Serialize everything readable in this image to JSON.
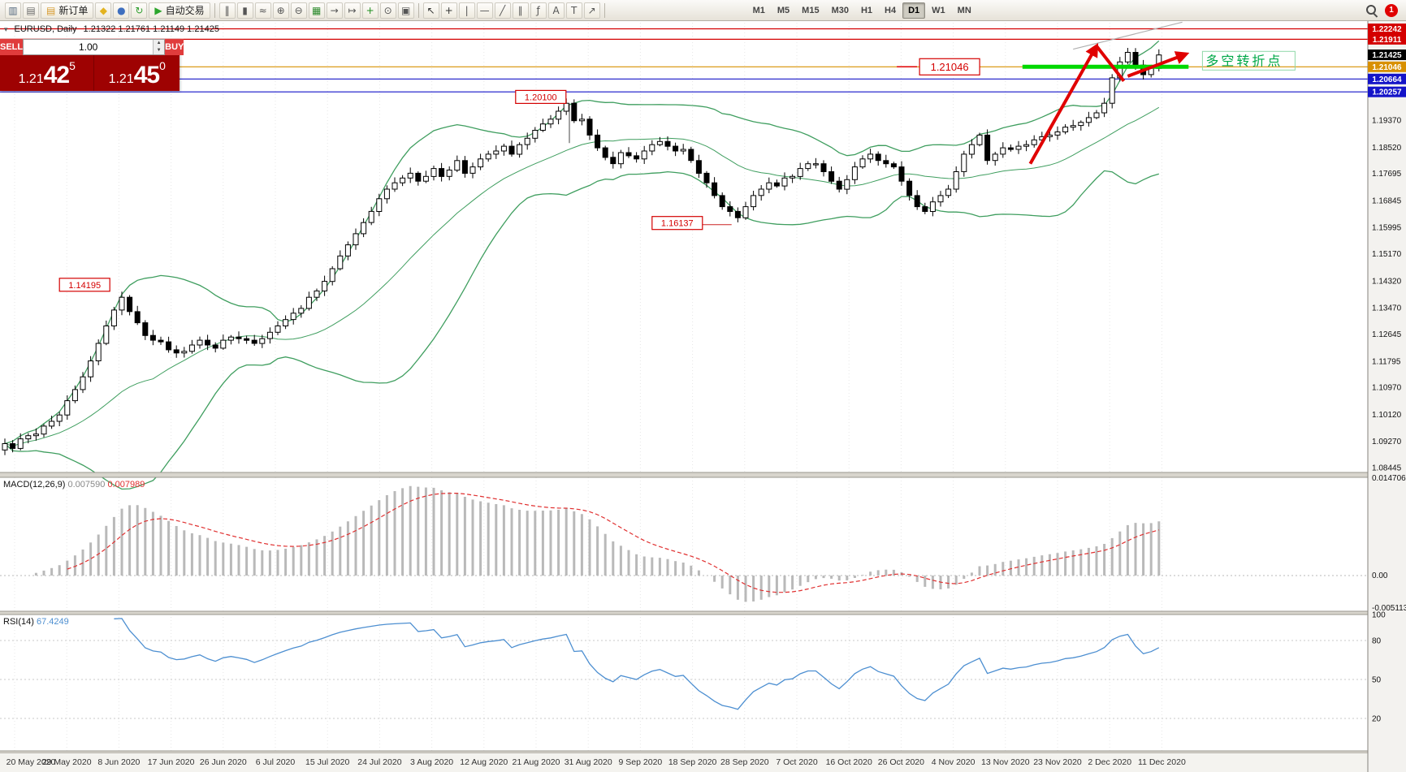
{
  "toolbar": {
    "new_order_label": "新订单",
    "autotrading_label": "自动交易",
    "notification_count": "1",
    "timeframes": [
      "M1",
      "M5",
      "M15",
      "M30",
      "H1",
      "H4",
      "D1",
      "W1",
      "MN"
    ],
    "active_timeframe": "D1",
    "items": [
      {
        "type": "icon",
        "name": "chart-window-icon",
        "glyph": "▥",
        "color": "#54687e"
      },
      {
        "type": "icon",
        "name": "profiles-icon",
        "glyph": "▤",
        "color": "#6b6b6b"
      },
      {
        "type": "button",
        "name": "new-order-button",
        "glyph": "▤",
        "color": "#d79b2f",
        "label_key": "new_order_label"
      },
      {
        "type": "icon",
        "name": "deposit-icon",
        "glyph": "◆",
        "color": "#e3b320"
      },
      {
        "type": "icon",
        "name": "user-icon",
        "glyph": "●",
        "color": "#3f6fbf"
      },
      {
        "type": "icon",
        "name": "refresh-icon",
        "glyph": "↻",
        "color": "#2e9e2e"
      },
      {
        "type": "button",
        "name": "autotrading-button",
        "glyph": "▶",
        "color": "#2ba52b",
        "label_key": "autotrading_label"
      },
      {
        "type": "sep"
      },
      {
        "type": "icon",
        "name": "bar-chart-icon",
        "glyph": "‖",
        "color": "#555"
      },
      {
        "type": "icon",
        "name": "candlestick-chart-icon",
        "glyph": "▮",
        "color": "#555"
      },
      {
        "type": "icon",
        "name": "line-chart-icon",
        "glyph": "≈",
        "color": "#555"
      },
      {
        "type": "icon",
        "name": "zoom-in-icon",
        "glyph": "⊕",
        "color": "#555"
      },
      {
        "type": "icon",
        "name": "zoom-out-icon",
        "glyph": "⊖",
        "color": "#555"
      },
      {
        "type": "icon",
        "name": "tile-windows-icon",
        "glyph": "▦",
        "color": "#2e8b2e"
      },
      {
        "type": "icon",
        "name": "auto-scroll-icon",
        "glyph": "→",
        "color": "#555"
      },
      {
        "type": "icon",
        "name": "chart-shift-icon",
        "glyph": "↦",
        "color": "#555"
      },
      {
        "type": "icon",
        "name": "add-indicator-icon",
        "glyph": "+",
        "color": "#1f8f1f"
      },
      {
        "type": "icon",
        "name": "periods-icon",
        "glyph": "⊙",
        "color": "#555"
      },
      {
        "type": "icon",
        "name": "template-icon",
        "glyph": "▣",
        "color": "#555"
      },
      {
        "type": "sep"
      },
      {
        "type": "icon",
        "name": "cursor-icon",
        "glyph": "↖",
        "color": "#333"
      },
      {
        "type": "icon",
        "name": "crosshair-icon",
        "glyph": "+",
        "color": "#333"
      },
      {
        "type": "icon",
        "name": "vertical-line-icon",
        "glyph": "|",
        "color": "#555"
      },
      {
        "type": "icon",
        "name": "horizontal-line-icon",
        "glyph": "—",
        "color": "#555"
      },
      {
        "type": "icon",
        "name": "trendline-icon",
        "glyph": "╱",
        "color": "#555"
      },
      {
        "type": "icon",
        "name": "channel-icon",
        "glyph": "∥",
        "color": "#555"
      },
      {
        "type": "icon",
        "name": "fibonacci-icon",
        "glyph": "ƒ",
        "color": "#555"
      },
      {
        "type": "icon",
        "name": "text-icon",
        "glyph": "A",
        "color": "#555"
      },
      {
        "type": "icon",
        "name": "text-label-icon",
        "glyph": "T",
        "color": "#555"
      },
      {
        "type": "icon",
        "name": "arrows-icon",
        "glyph": "↗",
        "color": "#555"
      },
      {
        "type": "sep"
      }
    ]
  },
  "chart": {
    "title": {
      "toggle_glyph": "▾",
      "symbol_period": "EURUSD, Daily",
      "ohlc": "1.21322 1.21761 1.21149 1.21425"
    },
    "trade_panel": {
      "sell_label": "SELL",
      "buy_label": "BUY",
      "volume": "1.00",
      "spin_up": "▲",
      "spin_down": "▼",
      "sell_price": {
        "base": "1.21",
        "big": "42",
        "sup": "5"
      },
      "buy_price": {
        "base": "1.21",
        "big": "45",
        "sup": "0"
      }
    }
  },
  "indicators": {
    "macd": {
      "label": "MACD(12,26,9)",
      "value_main": "0.007590",
      "value_signal": "0.007989"
    },
    "rsi": {
      "label": "RSI(14)",
      "value": "67.4249"
    }
  },
  "chart_data": {
    "type": "candlestick",
    "symbol": "EURUSD",
    "timeframe": "Daily",
    "x_labels": [
      "20 May 2020",
      "29 May 2020",
      "8 Jun 2020",
      "17 Jun 2020",
      "26 Jun 2020",
      "6 Jul 2020",
      "15 Jul 2020",
      "24 Jul 2020",
      "3 Aug 2020",
      "12 Aug 2020",
      "21 Aug 2020",
      "31 Aug 2020",
      "9 Sep 2020",
      "18 Sep 2020",
      "28 Sep 2020",
      "7 Oct 2020",
      "16 Oct 2020",
      "26 Oct 2020",
      "4 Nov 2020",
      "13 Nov 2020",
      "23 Nov 2020",
      "2 Dec 2020",
      "11 Dec 2020"
    ],
    "closes": [
      1.092,
      1.0905,
      1.0935,
      1.0945,
      1.095,
      1.0975,
      1.099,
      1.101,
      1.1055,
      1.109,
      1.113,
      1.118,
      1.1235,
      1.129,
      1.134,
      1.138,
      1.1335,
      1.13,
      1.126,
      1.1245,
      1.124,
      1.1215,
      1.1205,
      1.121,
      1.123,
      1.1245,
      1.123,
      1.122,
      1.1245,
      1.1255,
      1.125,
      1.1245,
      1.1235,
      1.125,
      1.127,
      1.129,
      1.131,
      1.133,
      1.1345,
      1.138,
      1.14,
      1.143,
      1.147,
      1.151,
      1.1545,
      1.158,
      1.1615,
      1.165,
      1.169,
      1.172,
      1.174,
      1.1755,
      1.177,
      1.1745,
      1.176,
      1.1785,
      1.176,
      1.178,
      1.181,
      1.177,
      1.179,
      1.1815,
      1.183,
      1.184,
      1.1855,
      1.183,
      1.186,
      1.188,
      1.1905,
      1.1925,
      1.194,
      1.1965,
      1.199,
      1.1935,
      1.194,
      1.189,
      1.185,
      1.182,
      1.18,
      1.1835,
      1.1825,
      1.1815,
      1.184,
      1.186,
      1.187,
      1.1855,
      1.184,
      1.1845,
      1.181,
      1.177,
      1.174,
      1.17,
      1.1665,
      1.165,
      1.163,
      1.1665,
      1.17,
      1.172,
      1.174,
      1.173,
      1.1755,
      1.176,
      1.1785,
      1.18,
      1.18,
      1.1775,
      1.1745,
      1.172,
      1.175,
      1.179,
      1.1815,
      1.183,
      1.181,
      1.18,
      1.179,
      1.1745,
      1.17,
      1.1665,
      1.165,
      1.168,
      1.17,
      1.172,
      1.1775,
      1.183,
      1.186,
      1.189,
      1.181,
      1.183,
      1.185,
      1.1845,
      1.1855,
      1.186,
      1.1875,
      1.1885,
      1.189,
      1.19,
      1.1915,
      1.192,
      1.193,
      1.1945,
      1.196,
      1.199,
      1.207,
      1.212,
      1.215,
      1.211,
      1.208,
      1.21,
      1.2142
    ],
    "y_ticks": [
      1.1937,
      1.1852,
      1.17695,
      1.16845,
      1.15995,
      1.1517,
      1.1432,
      1.1347,
      1.12645,
      1.11795,
      1.1097,
      1.1012,
      1.0927,
      1.08445
    ],
    "price_levels": [
      {
        "price": 1.22242,
        "tag_bg": "#d40000",
        "line": true,
        "line_color": "#d40000"
      },
      {
        "price": 1.21911,
        "tag_bg": "#d40000",
        "line": true,
        "line_color": "#d40000"
      },
      {
        "price": 1.21425,
        "tag_bg": "#000000",
        "line": false,
        "line_color": null,
        "role": "last-price"
      },
      {
        "price": 1.21046,
        "tag_bg": "#d89000",
        "line": true,
        "line_color": "#d89000"
      },
      {
        "price": 1.20664,
        "tag_bg": "#1414c8",
        "line": true,
        "line_color": "#1414c8"
      },
      {
        "price": 1.20257,
        "tag_bg": "#1414c8",
        "line": true,
        "line_color": "#1414c8"
      }
    ],
    "overlays": {
      "bollinger_period": 20,
      "bollinger_deviation": 2,
      "bollinger_color": "#3f9e5f"
    },
    "macd": {
      "params": [
        12,
        26,
        9
      ],
      "scale": [
        "0.014706",
        "0.00",
        "-0.005113"
      ],
      "scale_values": [
        0.014706,
        0,
        -0.005113
      ]
    },
    "rsi": {
      "period": 14,
      "scale": [
        "100",
        "80",
        "50",
        "20"
      ],
      "scale_values": [
        100,
        80,
        50,
        20
      ],
      "level_lines": [
        80,
        50,
        20
      ]
    },
    "annotations": {
      "labels": [
        {
          "text": "1.14195",
          "value": 1.14195,
          "ci": 7,
          "big": false
        },
        {
          "text": "1.20100",
          "value": 1.201,
          "ci": 65.5,
          "big": false,
          "vline": {
            "ci": 72.4,
            "to": 1.1865
          }
        },
        {
          "text": "1.16137",
          "value": 1.16137,
          "ci": 83,
          "big": false,
          "hline": {
            "to_ci": 93.2
          }
        },
        {
          "text": "1.21046",
          "value": 1.21046,
          "ci": 117.3,
          "big": true,
          "dash_left": true
        }
      ],
      "note": {
        "text": "多空转折点",
        "ci": 154,
        "value": 1.21226,
        "color": "#00a848"
      },
      "drawings": {
        "arrows": [
          {
            "from": [
              131.5,
              1.18
            ],
            "to": [
              140,
              1.217
            ],
            "head": true
          },
          {
            "from": [
              140,
              1.217
            ],
            "to": [
              143.5,
              1.206
            ],
            "head": false
          },
          {
            "from": [
              144,
              1.2075
            ],
            "to": [
              151.5,
              1.2145
            ],
            "head": true
          }
        ],
        "arrow_color": "#e00000",
        "hline_segment": {
          "from_ci": 130.5,
          "to_ci": 151.8,
          "price": 1.21046,
          "color": "#00d800",
          "width": 5
        },
        "trendline": {
          "from": [
            137,
            1.216
          ],
          "to": [
            151,
            1.2245
          ],
          "color": "#b0b0b0"
        }
      }
    }
  }
}
